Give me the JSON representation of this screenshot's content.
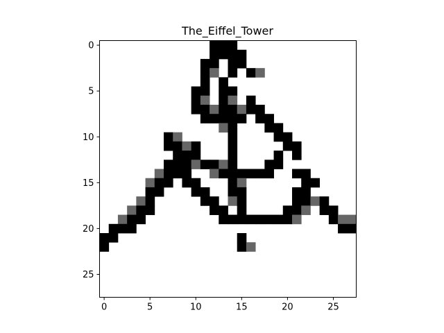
{
  "chart_data": {
    "type": "heatmap",
    "title": "The_Eiffel_Tower",
    "xlabel": "",
    "ylabel": "",
    "grid": false,
    "rows": 28,
    "cols": 28,
    "x_ticks": [
      0,
      5,
      10,
      15,
      20,
      25
    ],
    "y_ticks": [
      0,
      5,
      10,
      15,
      20,
      25
    ],
    "colormap": "gray_r",
    "value_range": [
      0,
      1
    ],
    "cells": [
      [
        0,
        12,
        1
      ],
      [
        0,
        13,
        1
      ],
      [
        0,
        14,
        1
      ],
      [
        1,
        12,
        1
      ],
      [
        1,
        13,
        1
      ],
      [
        1,
        14,
        1
      ],
      [
        1,
        15,
        1
      ],
      [
        2,
        11,
        1
      ],
      [
        2,
        12,
        1
      ],
      [
        2,
        14,
        1
      ],
      [
        2,
        15,
        1
      ],
      [
        3,
        11,
        1
      ],
      [
        3,
        12,
        0.6
      ],
      [
        3,
        14,
        1
      ],
      [
        3,
        16,
        1
      ],
      [
        3,
        17,
        0.6
      ],
      [
        4,
        11,
        1
      ],
      [
        4,
        13,
        1
      ],
      [
        5,
        10,
        1
      ],
      [
        5,
        11,
        1
      ],
      [
        5,
        13,
        1
      ],
      [
        5,
        14,
        1
      ],
      [
        6,
        10,
        1
      ],
      [
        6,
        11,
        0.6
      ],
      [
        6,
        13,
        1
      ],
      [
        6,
        14,
        0.6
      ],
      [
        6,
        16,
        1
      ],
      [
        7,
        10,
        1
      ],
      [
        7,
        11,
        1
      ],
      [
        7,
        12,
        0.6
      ],
      [
        7,
        13,
        1
      ],
      [
        7,
        14,
        1
      ],
      [
        7,
        15,
        0.6
      ],
      [
        7,
        16,
        1
      ],
      [
        7,
        17,
        1
      ],
      [
        8,
        11,
        1
      ],
      [
        8,
        12,
        1
      ],
      [
        8,
        13,
        1
      ],
      [
        8,
        14,
        1
      ],
      [
        8,
        15,
        1
      ],
      [
        8,
        17,
        1
      ],
      [
        8,
        18,
        1
      ],
      [
        9,
        13,
        0.6
      ],
      [
        9,
        14,
        1
      ],
      [
        9,
        18,
        1
      ],
      [
        9,
        19,
        1
      ],
      [
        10,
        7,
        1
      ],
      [
        10,
        8,
        0.6
      ],
      [
        10,
        14,
        1
      ],
      [
        10,
        19,
        1
      ],
      [
        10,
        20,
        1
      ],
      [
        11,
        7,
        1
      ],
      [
        11,
        8,
        1
      ],
      [
        11,
        9,
        0.6
      ],
      [
        11,
        10,
        1
      ],
      [
        11,
        14,
        1
      ],
      [
        11,
        20,
        1
      ],
      [
        11,
        21,
        1
      ],
      [
        12,
        8,
        1
      ],
      [
        12,
        9,
        1
      ],
      [
        12,
        10,
        1
      ],
      [
        12,
        14,
        1
      ],
      [
        12,
        19,
        1
      ],
      [
        12,
        21,
        1
      ],
      [
        13,
        7,
        1
      ],
      [
        13,
        8,
        1
      ],
      [
        13,
        9,
        1
      ],
      [
        13,
        10,
        0.6
      ],
      [
        13,
        11,
        1
      ],
      [
        13,
        12,
        1
      ],
      [
        13,
        13,
        0.6
      ],
      [
        13,
        14,
        1
      ],
      [
        13,
        18,
        1
      ],
      [
        13,
        19,
        1
      ],
      [
        14,
        6,
        0.6
      ],
      [
        14,
        7,
        1
      ],
      [
        14,
        8,
        1
      ],
      [
        14,
        9,
        1
      ],
      [
        14,
        12,
        0.6
      ],
      [
        14,
        13,
        1
      ],
      [
        14,
        14,
        1
      ],
      [
        14,
        15,
        1
      ],
      [
        14,
        16,
        1
      ],
      [
        14,
        17,
        1
      ],
      [
        14,
        18,
        1
      ],
      [
        14,
        21,
        1
      ],
      [
        14,
        22,
        1
      ],
      [
        15,
        5,
        0.6
      ],
      [
        15,
        6,
        1
      ],
      [
        15,
        7,
        1
      ],
      [
        15,
        9,
        1
      ],
      [
        15,
        10,
        1
      ],
      [
        15,
        14,
        1
      ],
      [
        15,
        15,
        0.6
      ],
      [
        15,
        22,
        1
      ],
      [
        15,
        23,
        1
      ],
      [
        16,
        5,
        1
      ],
      [
        16,
        6,
        1
      ],
      [
        16,
        10,
        1
      ],
      [
        16,
        11,
        1
      ],
      [
        16,
        14,
        1
      ],
      [
        16,
        15,
        1
      ],
      [
        16,
        21,
        1
      ],
      [
        16,
        22,
        1
      ],
      [
        17,
        4,
        0.6
      ],
      [
        17,
        5,
        1
      ],
      [
        17,
        11,
        1
      ],
      [
        17,
        12,
        1
      ],
      [
        17,
        14,
        0.6
      ],
      [
        17,
        15,
        1
      ],
      [
        17,
        21,
        1
      ],
      [
        17,
        22,
        1
      ],
      [
        17,
        23,
        0.6
      ],
      [
        17,
        24,
        1
      ],
      [
        18,
        3,
        0.6
      ],
      [
        18,
        4,
        1
      ],
      [
        18,
        5,
        1
      ],
      [
        18,
        12,
        1
      ],
      [
        18,
        13,
        1
      ],
      [
        18,
        15,
        1
      ],
      [
        18,
        20,
        1
      ],
      [
        18,
        21,
        1
      ],
      [
        18,
        22,
        0.6
      ],
      [
        18,
        24,
        1
      ],
      [
        18,
        25,
        1
      ],
      [
        19,
        2,
        0.6
      ],
      [
        19,
        3,
        1
      ],
      [
        19,
        4,
        1
      ],
      [
        19,
        13,
        1
      ],
      [
        19,
        14,
        1
      ],
      [
        19,
        15,
        1
      ],
      [
        19,
        16,
        1
      ],
      [
        19,
        17,
        1
      ],
      [
        19,
        18,
        1
      ],
      [
        19,
        19,
        1
      ],
      [
        19,
        20,
        1
      ],
      [
        19,
        21,
        0.6
      ],
      [
        19,
        25,
        1
      ],
      [
        19,
        26,
        0.6
      ],
      [
        19,
        27,
        0.6
      ],
      [
        20,
        1,
        1
      ],
      [
        20,
        2,
        1
      ],
      [
        20,
        3,
        1
      ],
      [
        20,
        26,
        1
      ],
      [
        20,
        27,
        1
      ],
      [
        21,
        0,
        1
      ],
      [
        21,
        1,
        1
      ],
      [
        21,
        15,
        1
      ],
      [
        22,
        0,
        1
      ],
      [
        22,
        15,
        1
      ],
      [
        22,
        16,
        0.6
      ]
    ]
  }
}
